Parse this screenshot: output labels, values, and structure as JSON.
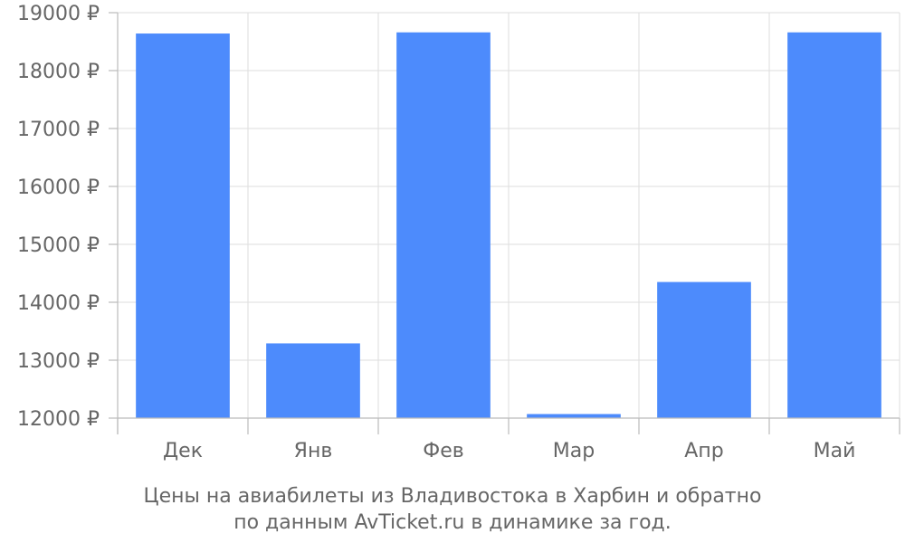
{
  "chart_data": {
    "type": "bar",
    "categories": [
      "Дек",
      "Янв",
      "Фев",
      "Мар",
      "Апр",
      "Май"
    ],
    "values": [
      18640,
      13290,
      18660,
      12070,
      14350,
      18660
    ],
    "y_tick_labels": [
      "12000 ₽",
      "13000 ₽",
      "14000 ₽",
      "15000 ₽",
      "16000 ₽",
      "17000 ₽",
      "18000 ₽",
      "19000 ₽"
    ],
    "y_ticks": [
      12000,
      13000,
      14000,
      15000,
      16000,
      17000,
      18000,
      19000
    ],
    "ylim": [
      12000,
      19000
    ],
    "caption_line1": "Цены на авиабилеты из Владивостока в Харбин и обратно",
    "caption_line2": "по данным AvTicket.ru в динамике за год.",
    "grid": true,
    "legend": "none",
    "bar_color": "#4d8bfc",
    "text_color": "#666666",
    "grid_color": "#dddddd"
  }
}
